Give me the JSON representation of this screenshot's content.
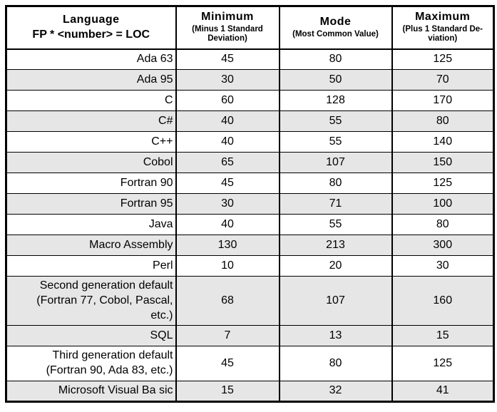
{
  "colors": {
    "shaded_row": "#e6e6e6",
    "border": "#000000",
    "text": "#000000",
    "background": "#ffffff"
  },
  "table": {
    "header": {
      "language": {
        "title": "Language",
        "subtitle": "FP * <number> = LOC"
      },
      "minimum": {
        "title": "Minimum",
        "subtitle": "(Minus 1 Standard\nDeviation)"
      },
      "mode": {
        "title": "Mode",
        "subtitle": "(Most Common Value)"
      },
      "maximum": {
        "title": "Maximum",
        "subtitle": "(Plus 1 Standard De-\nviation)"
      }
    },
    "rows": [
      {
        "language": "Ada 63",
        "minimum": "45",
        "mode": "80",
        "maximum": "125"
      },
      {
        "language": "Ada 95",
        "minimum": "30",
        "mode": "50",
        "maximum": "70"
      },
      {
        "language": "C",
        "minimum": "60",
        "mode": "128",
        "maximum": "170"
      },
      {
        "language": "C#",
        "minimum": "40",
        "mode": "55",
        "maximum": "80"
      },
      {
        "language": "C++",
        "minimum": "40",
        "mode": "55",
        "maximum": "140"
      },
      {
        "language": "Cobol",
        "minimum": "65",
        "mode": "107",
        "maximum": "150"
      },
      {
        "language": "Fortran 90",
        "minimum": "45",
        "mode": "80",
        "maximum": "125"
      },
      {
        "language": "Fortran 95",
        "minimum": "30",
        "mode": "71",
        "maximum": "100"
      },
      {
        "language": "Java",
        "minimum": "40",
        "mode": "55",
        "maximum": "80"
      },
      {
        "language": "Macro Assembly",
        "minimum": "130",
        "mode": "213",
        "maximum": "300"
      },
      {
        "language": "Perl",
        "minimum": "10",
        "mode": "20",
        "maximum": "30"
      },
      {
        "language": "Second generation default\n(Fortran 77, Cobol, Pascal,\netc.)",
        "minimum": "68",
        "mode": "107",
        "maximum": "160"
      },
      {
        "language": "SQL",
        "minimum": "7",
        "mode": "13",
        "maximum": "15"
      },
      {
        "language": "Third generation default\n(Fortran 90, Ada 83, etc.)",
        "minimum": "45",
        "mode": "80",
        "maximum": "125"
      },
      {
        "language": "Microsoft Visual Ba sic",
        "minimum": "15",
        "mode": "32",
        "maximum": "41"
      }
    ]
  }
}
